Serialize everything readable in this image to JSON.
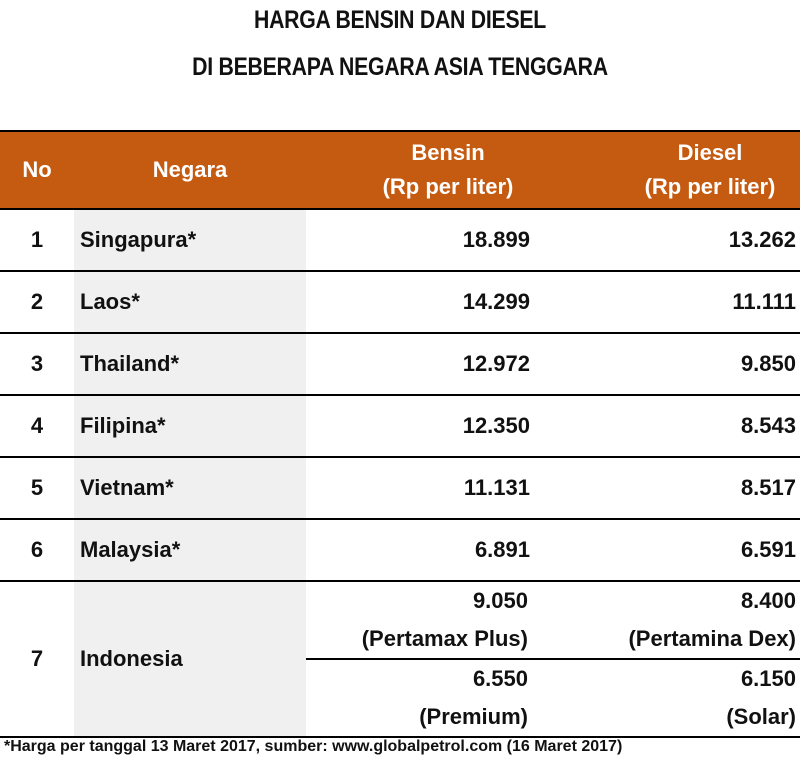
{
  "title": {
    "line1": "HARGA BENSIN DAN DIESEL",
    "line2": "DI BEBERAPA NEGARA ASIA TENGGARA"
  },
  "header": {
    "no": "No",
    "negara": "Negara",
    "bensin": "Bensin",
    "bensin_unit": "(Rp per liter)",
    "diesel": "Diesel",
    "diesel_unit": "(Rp per liter)"
  },
  "header_color": "#c55a11",
  "rows": [
    {
      "no": "1",
      "negara": "Singapura*",
      "bensin": "18.899",
      "diesel": "13.262"
    },
    {
      "no": "2",
      "negara": "Laos*",
      "bensin": "14.299",
      "diesel": "11.111"
    },
    {
      "no": "3",
      "negara": "Thailand*",
      "bensin": "12.972",
      "diesel": "9.850"
    },
    {
      "no": "4",
      "negara": "Filipina*",
      "bensin": "12.350",
      "diesel": "8.543"
    },
    {
      "no": "5",
      "negara": "Vietnam*",
      "bensin": "11.131",
      "diesel": "8.517"
    },
    {
      "no": "6",
      "negara": "Malaysia*",
      "bensin": "6.891",
      "diesel": "6.591"
    }
  ],
  "indonesia": {
    "no": "7",
    "negara": "Indonesia",
    "bensin": [
      {
        "value": "9.050",
        "label": "(Pertamax Plus)"
      },
      {
        "value": "6.550",
        "label": "(Premium)"
      }
    ],
    "diesel": [
      {
        "value": "8.400",
        "label": "(Pertamina Dex)"
      },
      {
        "value": "6.150",
        "label": "(Solar)"
      }
    ]
  },
  "footnote": "*Harga per tanggal 13 Maret 2017, sumber: www.globalpetrol.com (16 Maret 2017)"
}
